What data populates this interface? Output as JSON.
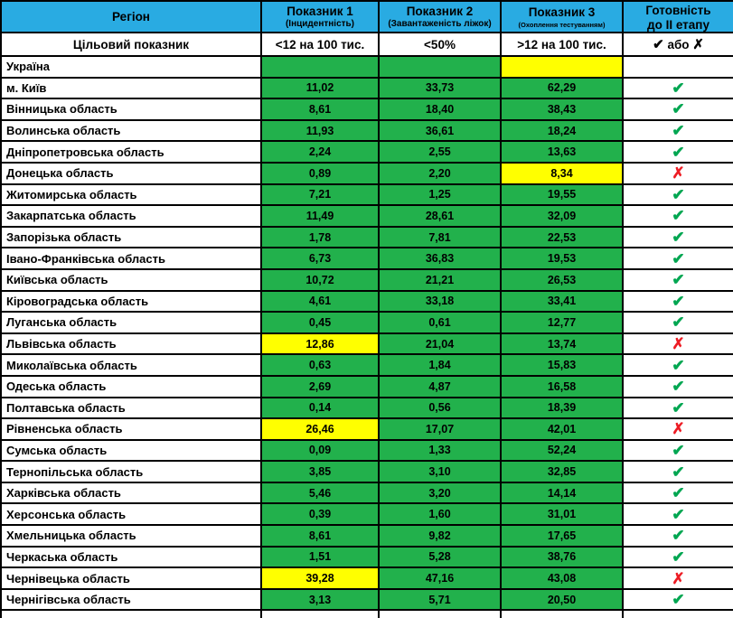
{
  "colors": {
    "header_blue": "#29ABE2",
    "cell_green": "#22B14C",
    "alert_yellow": "#FFFF00",
    "neutral_gray": "#C0C0C0",
    "check_green": "#00A651",
    "cross_red": "#ED1C24",
    "border_black": "#000000"
  },
  "chart_data": {
    "type": "table",
    "columns": [
      {
        "title": "Регіон",
        "subtitle": ""
      },
      {
        "title": "Показник 1",
        "subtitle": "(Інцидентність)"
      },
      {
        "title": "Показник 2",
        "subtitle": "(Завантаженість ліжок)"
      },
      {
        "title": "Показник 3",
        "subtitle": "(Охоплення тестуванням)"
      },
      {
        "title": "Готовність",
        "title2": "до II етапу"
      }
    ],
    "target_row": {
      "label": "Цільовий показник",
      "t1": "<12 на 100 тис.",
      "t2": "<50%",
      "t3": ">12 на 100 тис.",
      "check": "✔",
      "or": "або",
      "x": "✗"
    },
    "ukraine_row": {
      "region": "Україна",
      "c1": "",
      "c1bg": "green",
      "c2": "",
      "c2bg": "green",
      "c3": "",
      "c3bg": "yellow",
      "statusbg": "gray"
    },
    "rows": [
      {
        "region": "м. Київ",
        "v1": "11,02",
        "v1bg": "green",
        "v2": "33,73",
        "v2bg": "green",
        "v3": "62,29",
        "v3bg": "green",
        "mark": "✔",
        "status": "check"
      },
      {
        "region": "Вінницька область",
        "v1": "8,61",
        "v1bg": "green",
        "v2": "18,40",
        "v2bg": "green",
        "v3": "38,43",
        "v3bg": "green",
        "mark": "✔",
        "status": "check"
      },
      {
        "region": "Волинська область",
        "v1": "11,93",
        "v1bg": "green",
        "v2": "36,61",
        "v2bg": "green",
        "v3": "18,24",
        "v3bg": "green",
        "mark": "✔",
        "status": "check"
      },
      {
        "region": "Дніпропетровська область",
        "v1": "2,24",
        "v1bg": "green",
        "v2": "2,55",
        "v2bg": "green",
        "v3": "13,63",
        "v3bg": "green",
        "mark": "✔",
        "status": "check"
      },
      {
        "region": "Донецька область",
        "v1": "0,89",
        "v1bg": "green",
        "v2": "2,20",
        "v2bg": "green",
        "v3": "8,34",
        "v3bg": "yellow",
        "mark": "✗",
        "status": "x"
      },
      {
        "region": "Житомирська область",
        "v1": "7,21",
        "v1bg": "green",
        "v2": "1,25",
        "v2bg": "green",
        "v3": "19,55",
        "v3bg": "green",
        "mark": "✔",
        "status": "check"
      },
      {
        "region": "Закарпатська область",
        "v1": "11,49",
        "v1bg": "green",
        "v2": "28,61",
        "v2bg": "green",
        "v3": "32,09",
        "v3bg": "green",
        "mark": "✔",
        "status": "check"
      },
      {
        "region": "Запорізька область",
        "v1": "1,78",
        "v1bg": "green",
        "v2": "7,81",
        "v2bg": "green",
        "v3": "22,53",
        "v3bg": "green",
        "mark": "✔",
        "status": "check"
      },
      {
        "region": "Івано-Франківська область",
        "v1": "6,73",
        "v1bg": "green",
        "v2": "36,83",
        "v2bg": "green",
        "v3": "19,53",
        "v3bg": "green",
        "mark": "✔",
        "status": "check"
      },
      {
        "region": "Київська область",
        "v1": "10,72",
        "v1bg": "green",
        "v2": "21,21",
        "v2bg": "green",
        "v3": "26,53",
        "v3bg": "green",
        "mark": "✔",
        "status": "check"
      },
      {
        "region": "Кіровоградська область",
        "v1": "4,61",
        "v1bg": "green",
        "v2": "33,18",
        "v2bg": "green",
        "v3": "33,41",
        "v3bg": "green",
        "mark": "✔",
        "status": "check"
      },
      {
        "region": "Луганська область",
        "v1": "0,45",
        "v1bg": "green",
        "v2": "0,61",
        "v2bg": "green",
        "v3": "12,77",
        "v3bg": "green",
        "mark": "✔",
        "status": "check"
      },
      {
        "region": "Львівська область",
        "v1": "12,86",
        "v1bg": "yellow",
        "v2": "21,04",
        "v2bg": "green",
        "v3": "13,74",
        "v3bg": "green",
        "mark": "✗",
        "status": "x"
      },
      {
        "region": "Миколаївська область",
        "v1": "0,63",
        "v1bg": "green",
        "v2": "1,84",
        "v2bg": "green",
        "v3": "15,83",
        "v3bg": "green",
        "mark": "✔",
        "status": "check"
      },
      {
        "region": "Одеська область",
        "v1": "2,69",
        "v1bg": "green",
        "v2": "4,87",
        "v2bg": "green",
        "v3": "16,58",
        "v3bg": "green",
        "mark": "✔",
        "status": "check"
      },
      {
        "region": "Полтавська область",
        "v1": "0,14",
        "v1bg": "green",
        "v2": "0,56",
        "v2bg": "green",
        "v3": "18,39",
        "v3bg": "green",
        "mark": "✔",
        "status": "check"
      },
      {
        "region": "Рівненська область",
        "v1": "26,46",
        "v1bg": "yellow",
        "v2": "17,07",
        "v2bg": "green",
        "v3": "42,01",
        "v3bg": "green",
        "mark": "✗",
        "status": "x"
      },
      {
        "region": "Сумська область",
        "v1": "0,09",
        "v1bg": "green",
        "v2": "1,33",
        "v2bg": "green",
        "v3": "52,24",
        "v3bg": "green",
        "mark": "✔",
        "status": "check"
      },
      {
        "region": "Тернопільська область",
        "v1": "3,85",
        "v1bg": "green",
        "v2": "3,10",
        "v2bg": "green",
        "v3": "32,85",
        "v3bg": "green",
        "mark": "✔",
        "status": "check"
      },
      {
        "region": "Харківська область",
        "v1": "5,46",
        "v1bg": "green",
        "v2": "3,20",
        "v2bg": "green",
        "v3": "14,14",
        "v3bg": "green",
        "mark": "✔",
        "status": "check"
      },
      {
        "region": "Херсонська область",
        "v1": "0,39",
        "v1bg": "green",
        "v2": "1,60",
        "v2bg": "green",
        "v3": "31,01",
        "v3bg": "green",
        "mark": "✔",
        "status": "check"
      },
      {
        "region": "Хмельницька область",
        "v1": "8,61",
        "v1bg": "green",
        "v2": "9,82",
        "v2bg": "green",
        "v3": "17,65",
        "v3bg": "green",
        "mark": "✔",
        "status": "check"
      },
      {
        "region": "Черкаська область",
        "v1": "1,51",
        "v1bg": "green",
        "v2": "5,28",
        "v2bg": "green",
        "v3": "38,76",
        "v3bg": "green",
        "mark": "✔",
        "status": "check"
      },
      {
        "region": "Чернівецька область",
        "v1": "39,28",
        "v1bg": "yellow",
        "v2": "47,16",
        "v2bg": "green",
        "v3": "43,08",
        "v3bg": "green",
        "mark": "✗",
        "status": "x"
      },
      {
        "region": "Чернігівська область",
        "v1": "3,13",
        "v1bg": "green",
        "v2": "5,71",
        "v2bg": "green",
        "v3": "20,50",
        "v3bg": "green",
        "mark": "✔",
        "status": "check"
      }
    ]
  }
}
